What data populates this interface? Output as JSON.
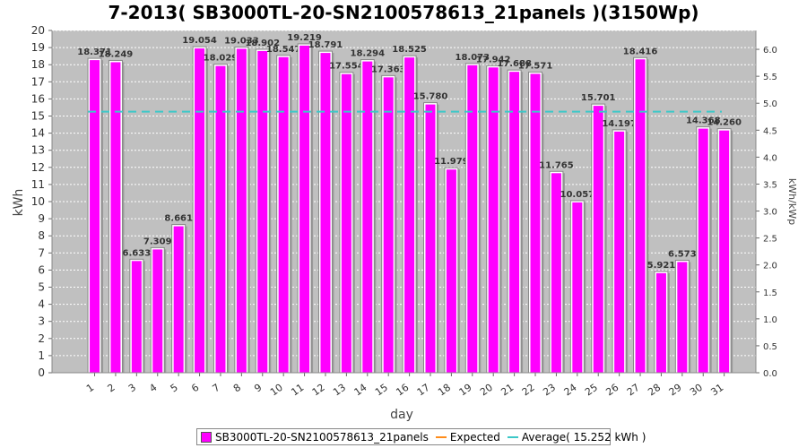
{
  "chart_data": {
    "type": "bar",
    "title": "7-2013( SB3000TL-20-SN2100578613_21panels )(3150Wp)",
    "xlabel": "day",
    "ylabel": "kWh",
    "y2label": "kWh/kWp",
    "ylim": [
      0,
      20
    ],
    "y2lim": [
      0,
      6.35
    ],
    "categories": [
      "1",
      "2",
      "3",
      "4",
      "5",
      "6",
      "7",
      "8",
      "9",
      "10",
      "11",
      "12",
      "13",
      "14",
      "15",
      "16",
      "17",
      "18",
      "19",
      "20",
      "21",
      "22",
      "23",
      "24",
      "25",
      "26",
      "27",
      "28",
      "29",
      "30",
      "31"
    ],
    "series": [
      {
        "name": "SB3000TL-20-SN2100578613_21panels",
        "values": [
          18.371,
          18.249,
          6.633,
          7.309,
          8.661,
          19.054,
          18.029,
          19.033,
          18.902,
          18.547,
          19.219,
          18.791,
          17.554,
          18.294,
          17.363,
          18.525,
          15.78,
          11.979,
          18.073,
          17.942,
          17.688,
          17.571,
          11.765,
          10.057,
          15.701,
          14.197,
          18.416,
          5.921,
          6.573,
          14.368,
          14.26
        ],
        "labels": [
          "18.371",
          "18.249",
          "6.633",
          "7.309",
          "8.661",
          "19.054",
          "18.029",
          "19.033",
          "18.902",
          "18.547",
          "19.219",
          "18.791",
          "17.554",
          "18.294",
          "17.363",
          "18.525",
          "15.780",
          "11.979",
          "18.073",
          "17.942",
          "17.688",
          "17.571",
          "11.765",
          "10.057",
          "15.701",
          "14.197",
          "18.416",
          "5.921",
          "6.573",
          "14.368",
          "14.260"
        ],
        "color": "#ff00ff"
      }
    ],
    "average": 15.252,
    "legend": [
      {
        "label": "SB3000TL-20-SN2100578613_21panels",
        "color": "#ff00ff",
        "kind": "box"
      },
      {
        "label": "Expected",
        "color": "#ff8c1a",
        "kind": "line"
      },
      {
        "label": "Average( 15.252 kWh )",
        "color": "#3cc8c8",
        "kind": "line"
      }
    ],
    "y_ticks": [
      "0",
      "1",
      "2",
      "3",
      "4",
      "5",
      "6",
      "7",
      "8",
      "9",
      "10",
      "11",
      "12",
      "13",
      "14",
      "15",
      "16",
      "17",
      "18",
      "19",
      "20"
    ],
    "y2_ticks": [
      "0.0",
      "0.5",
      "1.0",
      "1.5",
      "2.0",
      "2.5",
      "3.0",
      "3.5",
      "4.0",
      "4.5",
      "5.0",
      "5.5",
      "6.0"
    ],
    "legend_position": "bottom",
    "grid": true,
    "colors": {
      "plot_bg": "#c0c0c0",
      "bar": "#ff00ff",
      "average_line": "#3cc8c8",
      "expected_line": "#ff8c1a"
    }
  }
}
